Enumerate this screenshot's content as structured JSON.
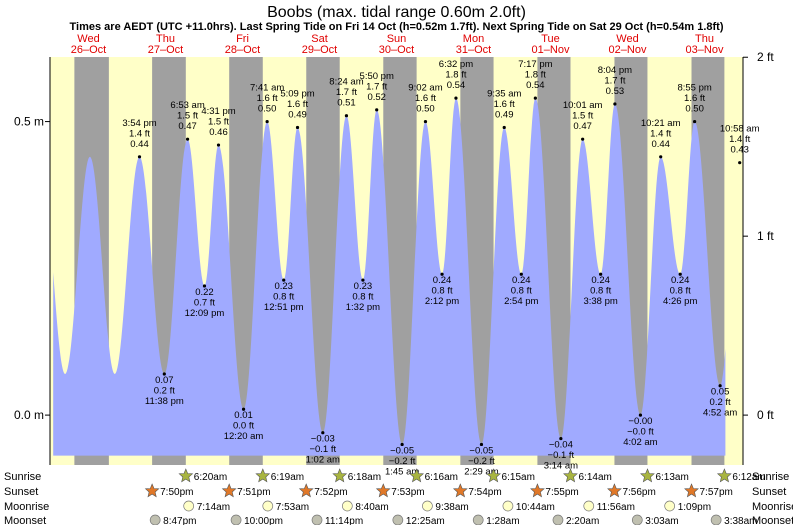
{
  "chart_data": {
    "type": "area",
    "title": "Boobs (max. tidal range 0.60m 2.0ft)",
    "subtitle": "Times are AEDT (UTC +11.0hrs). Last Spring Tide on Fri 14 Oct (h=0.52m 1.7ft). Next Spring Tide on Sat 29 Oct (h=0.54m 1.8ft)",
    "ylabel_left": "m",
    "ylabel_right": "ft",
    "ylim_m": [
      -0.085,
      0.61
    ],
    "left_ticks": [
      {
        "v": 0.0,
        "label": "0.0 m"
      },
      {
        "v": 0.5,
        "label": "0.5 m"
      }
    ],
    "right_ticks": [
      {
        "v": 0.0,
        "label": "0 ft"
      },
      {
        "v": 0.3048,
        "label": "1 ft"
      },
      {
        "v": 0.6096,
        "label": "2 ft"
      }
    ],
    "xlim_hours": [
      -12.0,
      204.0
    ],
    "days": [
      {
        "dow": "Wed",
        "date": "26–Oct",
        "t": 0
      },
      {
        "dow": "Thu",
        "date": "27–Oct",
        "t": 24
      },
      {
        "dow": "Fri",
        "date": "28–Oct",
        "t": 48
      },
      {
        "dow": "Sat",
        "date": "29–Oct",
        "t": 72
      },
      {
        "dow": "Sun",
        "date": "30–Oct",
        "t": 96
      },
      {
        "dow": "Mon",
        "date": "31–Oct",
        "t": 120
      },
      {
        "dow": "Tue",
        "date": "01–Nov",
        "t": 144
      },
      {
        "dow": "Wed",
        "date": "02–Nov",
        "t": 168
      },
      {
        "dow": "Thu",
        "date": "03–Nov",
        "t": 192
      }
    ],
    "curve_range_hours": [
      -11.0,
      198.5
    ],
    "tides": [
      {
        "t": 15.9,
        "h": 0.44,
        "time": "3:54 pm",
        "ft": "1.4 ft",
        "m": "0.44"
      },
      {
        "t": 23.63,
        "h": 0.07,
        "time": "11:38 pm",
        "ft": "0.2 ft",
        "m": "0.07"
      },
      {
        "t": 30.88,
        "h": 0.47,
        "time": "6:53 am",
        "ft": "1.5 ft",
        "m": "0.47"
      },
      {
        "t": 36.15,
        "h": 0.22,
        "time": "12:09 pm",
        "ft": "0.7 ft",
        "m": "0.22"
      },
      {
        "t": 40.52,
        "h": 0.46,
        "time": "4:31 pm",
        "ft": "1.5 ft",
        "m": "0.46"
      },
      {
        "t": 48.33,
        "h": 0.01,
        "time": "12:20 am",
        "ft": "0.0 ft",
        "m": "0.01"
      },
      {
        "t": 55.68,
        "h": 0.5,
        "time": "7:41 am",
        "ft": "1.6 ft",
        "m": "0.50"
      },
      {
        "t": 60.85,
        "h": 0.23,
        "time": "12:51 pm",
        "ft": "0.8 ft",
        "m": "0.23"
      },
      {
        "t": 65.15,
        "h": 0.49,
        "time": "5:09 pm",
        "ft": "1.6 ft",
        "m": "0.49"
      },
      {
        "t": 73.03,
        "h": -0.03,
        "time": "1:02 am",
        "ft": "−0.1 ft",
        "m": "−0.03"
      },
      {
        "t": 80.4,
        "h": 0.51,
        "time": "8:24 am",
        "ft": "1.7 ft",
        "m": "0.51"
      },
      {
        "t": 85.53,
        "h": 0.23,
        "time": "1:32 pm",
        "ft": "0.8 ft",
        "m": "0.23"
      },
      {
        "t": 89.83,
        "h": 0.52,
        "time": "5:50 pm",
        "ft": "1.7 ft",
        "m": "0.52"
      },
      {
        "t": 97.75,
        "h": -0.05,
        "time": "1:45 am",
        "ft": "−0.2 ft",
        "m": "−0.05"
      },
      {
        "t": 105.03,
        "h": 0.5,
        "time": "9:02 am",
        "ft": "1.6 ft",
        "m": "0.50"
      },
      {
        "t": 110.2,
        "h": 0.24,
        "time": "2:12 pm",
        "ft": "0.8 ft",
        "m": "0.24"
      },
      {
        "t": 114.53,
        "h": 0.54,
        "time": "6:32 pm",
        "ft": "1.8 ft",
        "m": "0.54"
      },
      {
        "t": 122.48,
        "h": -0.05,
        "time": "2:29 am",
        "ft": "−0.2 ft",
        "m": "−0.05"
      },
      {
        "t": 129.58,
        "h": 0.49,
        "time": "9:35 am",
        "ft": "1.6 ft",
        "m": "0.49"
      },
      {
        "t": 134.9,
        "h": 0.24,
        "time": "2:54 pm",
        "ft": "0.8 ft",
        "m": "0.24"
      },
      {
        "t": 139.28,
        "h": 0.54,
        "time": "7:17 pm",
        "ft": "1.8 ft",
        "m": "0.54"
      },
      {
        "t": 147.23,
        "h": -0.04,
        "time": "3:14 am",
        "ft": "−0.1 ft",
        "m": "−0.04"
      },
      {
        "t": 154.02,
        "h": 0.47,
        "time": "10:01 am",
        "ft": "1.5 ft",
        "m": "0.47"
      },
      {
        "t": 159.63,
        "h": 0.24,
        "time": "3:38 pm",
        "ft": "0.8 ft",
        "m": "0.24"
      },
      {
        "t": 164.07,
        "h": 0.53,
        "time": "8:04 pm",
        "ft": "1.7 ft",
        "m": "0.53"
      },
      {
        "t": 172.03,
        "h": 0.0,
        "time": "4:02 am",
        "ft": "−0.0 ft",
        "m": "−0.00"
      },
      {
        "t": 178.35,
        "h": 0.44,
        "time": "10:21 am",
        "ft": "1.4 ft",
        "m": "0.44"
      },
      {
        "t": 184.43,
        "h": 0.24,
        "time": "4:26 pm",
        "ft": "0.8 ft",
        "m": "0.24"
      },
      {
        "t": 188.92,
        "h": 0.5,
        "time": "8:55 pm",
        "ft": "1.6 ft",
        "m": "0.50"
      },
      {
        "t": 196.87,
        "h": 0.05,
        "time": "4:52 am",
        "ft": "0.2 ft",
        "m": "0.05"
      },
      {
        "t": 202.97,
        "h": 0.43,
        "time": "10:58 am",
        "ft": "1.4 ft",
        "m": "0.43"
      }
    ],
    "nights": [
      {
        "set": -4.4,
        "rise": 6.35
      },
      {
        "set": 19.83,
        "rise": 30.33
      },
      {
        "set": 43.85,
        "rise": 54.32
      },
      {
        "set": 67.87,
        "rise": 78.3
      },
      {
        "set": 91.88,
        "rise": 102.27
      },
      {
        "set": 115.9,
        "rise": 126.25
      },
      {
        "set": 139.92,
        "rise": 150.23
      },
      {
        "set": 163.93,
        "rise": 174.22
      },
      {
        "set": 187.95,
        "rise": 198.2
      }
    ],
    "events": {
      "row_labels": [
        "Sunrise",
        "Sunset",
        "Moonrise",
        "Moonset"
      ],
      "sunrise": [
        {
          "t": 30.33,
          "time": "6:20am"
        },
        {
          "t": 54.32,
          "time": "6:19am"
        },
        {
          "t": 78.3,
          "time": "6:18am"
        },
        {
          "t": 102.27,
          "time": "6:16am"
        },
        {
          "t": 126.25,
          "time": "6:15am"
        },
        {
          "t": 150.23,
          "time": "6:14am"
        },
        {
          "t": 174.22,
          "time": "6:13am"
        },
        {
          "t": 198.2,
          "time": "6:12am"
        }
      ],
      "sunset": [
        {
          "t": 19.83,
          "time": "7:50pm"
        },
        {
          "t": 43.85,
          "time": "7:51pm"
        },
        {
          "t": 67.87,
          "time": "7:52pm"
        },
        {
          "t": 91.88,
          "time": "7:53pm"
        },
        {
          "t": 115.9,
          "time": "7:54pm"
        },
        {
          "t": 139.92,
          "time": "7:55pm"
        },
        {
          "t": 163.93,
          "time": "7:56pm"
        },
        {
          "t": 187.95,
          "time": "7:57pm"
        }
      ],
      "moonrise": [
        {
          "t": 31.23,
          "time": "7:14am"
        },
        {
          "t": 55.88,
          "time": "7:53am"
        },
        {
          "t": 80.67,
          "time": "8:40am"
        },
        {
          "t": 105.63,
          "time": "9:38am"
        },
        {
          "t": 130.73,
          "time": "10:44am"
        },
        {
          "t": 155.93,
          "time": "11:56am"
        },
        {
          "t": 181.15,
          "time": "1:09pm"
        }
      ],
      "moonset": [
        {
          "t": 20.78,
          "time": "8:47pm"
        },
        {
          "t": 46.0,
          "time": "10:00pm"
        },
        {
          "t": 71.23,
          "time": "11:14pm"
        },
        {
          "t": 96.42,
          "time": "12:25am"
        },
        {
          "t": 121.47,
          "time": "1:28am"
        },
        {
          "t": 146.33,
          "time": "2:20am"
        },
        {
          "t": 171.05,
          "time": "3:03am"
        },
        {
          "t": 195.63,
          "time": "3:38am"
        }
      ]
    }
  },
  "colors": {
    "water": "#a0aaff",
    "day": "#ffffc8",
    "night": "#a0a0a0",
    "day_label": "#e00000",
    "sun_star": "#a8b440",
    "sunset_star": "#e07828",
    "moonrise": "#ffffc8",
    "moonset": "#c0c0b0"
  }
}
